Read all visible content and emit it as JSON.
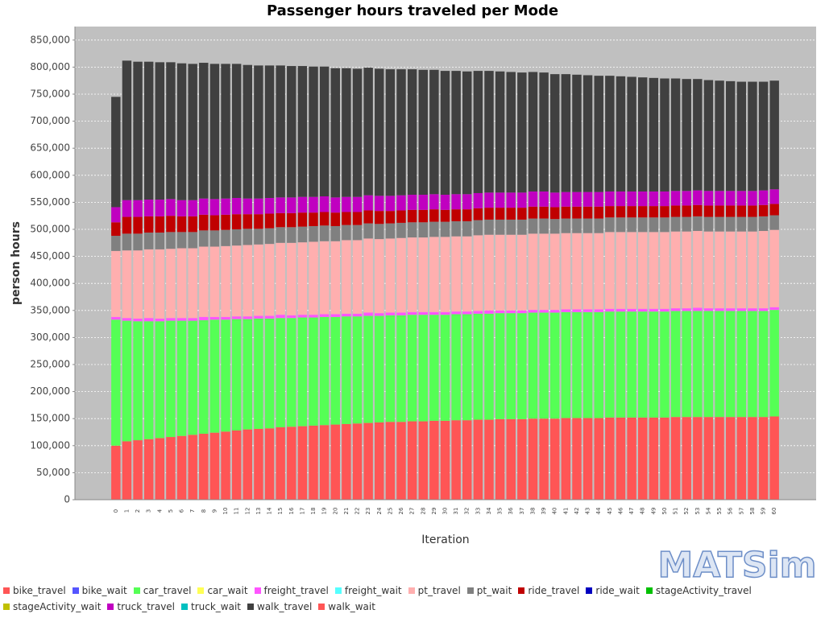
{
  "chart_data": {
    "type": "stacked_bar",
    "title": "Passenger hours traveled per Mode",
    "xlabel": "Iteration",
    "ylabel": "person hours",
    "logo": "MATSim",
    "categories": [
      0,
      1,
      2,
      3,
      4,
      5,
      6,
      7,
      8,
      9,
      10,
      11,
      12,
      13,
      14,
      15,
      16,
      17,
      18,
      19,
      20,
      21,
      22,
      23,
      24,
      25,
      26,
      27,
      28,
      29,
      30,
      31,
      32,
      33,
      34,
      35,
      36,
      37,
      38,
      39,
      40,
      41,
      42,
      43,
      44,
      45,
      46,
      47,
      48,
      49,
      50,
      51,
      52,
      53,
      54,
      55,
      56,
      57,
      58,
      59,
      60
    ],
    "ylim": [
      0,
      875000
    ],
    "yticks": [
      0,
      {
        "value": 50000,
        "label": "50,000"
      },
      {
        "value": 100000,
        "label": "100,000"
      },
      {
        "value": 150000,
        "label": "150,000"
      },
      {
        "value": 200000,
        "label": "200,000"
      },
      {
        "value": 250000,
        "label": "250,000"
      },
      {
        "value": 300000,
        "label": "300,000"
      },
      {
        "value": 350000,
        "label": "350,000"
      },
      {
        "value": 400000,
        "label": "400,000"
      },
      {
        "value": 450000,
        "label": "450,000"
      },
      {
        "value": 500000,
        "label": "500,000"
      },
      {
        "value": 550000,
        "label": "550,000"
      },
      {
        "value": 600000,
        "label": "600,000"
      },
      {
        "value": 650000,
        "label": "650,000"
      },
      {
        "value": 700000,
        "label": "700,000"
      },
      {
        "value": 750000,
        "label": "750,000"
      },
      {
        "value": 800000,
        "label": "800,000"
      },
      {
        "value": 850000,
        "label": "850,000"
      }
    ],
    "grid": true,
    "series": [
      {
        "name": "bike_travel",
        "color": "#ff5555",
        "values": [
          100000,
          108000,
          110000,
          112000,
          114000,
          116000,
          118000,
          120000,
          122000,
          124000,
          126000,
          128000,
          130000,
          131000,
          132000,
          134000,
          135000,
          136000,
          137000,
          138000,
          139000,
          140000,
          141000,
          142000,
          143000,
          144000,
          144000,
          145000,
          145000,
          146000,
          146000,
          147000,
          147000,
          148000,
          148000,
          149000,
          149000,
          149000,
          150000,
          150000,
          150000,
          151000,
          151000,
          151000,
          151000,
          152000,
          152000,
          152000,
          152000,
          152000,
          152000,
          153000,
          153000,
          153000,
          153000,
          153000,
          153000,
          153000,
          153000,
          153000,
          154000
        ]
      },
      {
        "name": "bike_wait",
        "color": "#5555ff",
        "values": [
          0,
          0,
          0,
          0,
          0,
          0,
          0,
          0,
          0,
          0,
          0,
          0,
          0,
          0,
          0,
          0,
          0,
          0,
          0,
          0,
          0,
          0,
          0,
          0,
          0,
          0,
          0,
          0,
          0,
          0,
          0,
          0,
          0,
          0,
          0,
          0,
          0,
          0,
          0,
          0,
          0,
          0,
          0,
          0,
          0,
          0,
          0,
          0,
          0,
          0,
          0,
          0,
          0,
          0,
          0,
          0,
          0,
          0,
          0,
          0,
          0
        ]
      },
      {
        "name": "car_travel",
        "color": "#55ff55",
        "values": [
          233000,
          223000,
          220000,
          218000,
          216000,
          215000,
          213000,
          211000,
          210000,
          209000,
          207000,
          206000,
          204000,
          204000,
          203000,
          202000,
          201000,
          201000,
          200000,
          200000,
          199000,
          199000,
          198000,
          198000,
          197000,
          197000,
          197000,
          197000,
          197000,
          196000,
          196000,
          196000,
          196000,
          196000,
          196000,
          196000,
          196000,
          196000,
          196000,
          196000,
          196000,
          196000,
          196000,
          196000,
          196000,
          196000,
          196000,
          196000,
          196000,
          196000,
          196000,
          196000,
          196000,
          196000,
          196000,
          196000,
          196000,
          196000,
          196000,
          196000,
          197000
        ]
      },
      {
        "name": "car_wait",
        "color": "#ffff55",
        "values": [
          0,
          0,
          0,
          0,
          0,
          0,
          0,
          0,
          0,
          0,
          0,
          0,
          0,
          0,
          0,
          0,
          0,
          0,
          0,
          0,
          0,
          0,
          0,
          0,
          0,
          0,
          0,
          0,
          0,
          0,
          0,
          0,
          0,
          0,
          0,
          0,
          0,
          0,
          0,
          0,
          0,
          0,
          0,
          0,
          0,
          0,
          0,
          0,
          0,
          0,
          0,
          0,
          0,
          0,
          0,
          0,
          0,
          0,
          0,
          0,
          0
        ]
      },
      {
        "name": "freight_travel",
        "color": "#ff55ff",
        "values": [
          5000,
          5000,
          5000,
          6000,
          5000,
          5000,
          5000,
          5000,
          6000,
          5000,
          5000,
          5000,
          5000,
          5000,
          5000,
          6000,
          5000,
          5000,
          5000,
          5000,
          5000,
          5000,
          5000,
          6000,
          5000,
          5000,
          5000,
          5000,
          5000,
          5000,
          5000,
          5000,
          5000,
          5000,
          6000,
          5000,
          5000,
          5000,
          5000,
          5000,
          5000,
          5000,
          5000,
          5000,
          5000,
          5000,
          5000,
          5000,
          5000,
          5000,
          5000,
          5000,
          5000,
          6000,
          5000,
          5000,
          5000,
          5000,
          5000,
          5000,
          5000
        ]
      },
      {
        "name": "freight_wait",
        "color": "#55ffff",
        "values": [
          0,
          0,
          0,
          0,
          0,
          0,
          0,
          0,
          0,
          0,
          0,
          0,
          0,
          0,
          0,
          0,
          0,
          0,
          0,
          0,
          0,
          0,
          0,
          0,
          0,
          0,
          0,
          0,
          0,
          0,
          0,
          0,
          0,
          0,
          0,
          0,
          0,
          0,
          0,
          0,
          0,
          0,
          0,
          0,
          0,
          0,
          0,
          0,
          0,
          0,
          0,
          0,
          0,
          0,
          0,
          0,
          0,
          0,
          0,
          0,
          0
        ]
      },
      {
        "name": "pt_travel",
        "color": "#ffafaf",
        "values": [
          122000,
          125000,
          126000,
          127000,
          128000,
          128000,
          129000,
          129000,
          130000,
          130000,
          131000,
          131000,
          132000,
          132000,
          133000,
          133000,
          134000,
          134000,
          135000,
          135000,
          135000,
          136000,
          136000,
          137000,
          137000,
          137000,
          138000,
          138000,
          138000,
          139000,
          139000,
          139000,
          139000,
          140000,
          140000,
          140000,
          140000,
          140000,
          141000,
          141000,
          141000,
          141000,
          141000,
          141000,
          141000,
          142000,
          142000,
          142000,
          142000,
          142000,
          142000,
          142000,
          142000,
          142000,
          142000,
          142000,
          142000,
          142000,
          142000,
          143000,
          143000
        ]
      },
      {
        "name": "pt_wait",
        "color": "#808080",
        "values": [
          28000,
          31000,
          31000,
          31000,
          31000,
          31000,
          30000,
          30000,
          30000,
          30000,
          30000,
          30000,
          30000,
          29000,
          29000,
          29000,
          29000,
          29000,
          29000,
          29000,
          28000,
          28000,
          28000,
          28000,
          28000,
          28000,
          28000,
          28000,
          28000,
          28000,
          28000,
          28000,
          28000,
          28000,
          28000,
          28000,
          28000,
          28000,
          28000,
          28000,
          27000,
          27000,
          27000,
          27000,
          27000,
          27000,
          27000,
          27000,
          27000,
          27000,
          27000,
          27000,
          27000,
          27000,
          27000,
          27000,
          27000,
          27000,
          27000,
          27000,
          27000
        ]
      },
      {
        "name": "ride_travel",
        "color": "#c00000",
        "values": [
          25000,
          31000,
          31000,
          30000,
          30000,
          30000,
          29000,
          29000,
          29000,
          28000,
          28000,
          28000,
          27000,
          27000,
          27000,
          26000,
          26000,
          26000,
          25000,
          25000,
          25000,
          24000,
          24000,
          24000,
          24000,
          23000,
          23000,
          23000,
          23000,
          23000,
          22000,
          22000,
          22000,
          22000,
          22000,
          22000,
          22000,
          22000,
          22000,
          22000,
          22000,
          22000,
          22000,
          22000,
          22000,
          21000,
          21000,
          21000,
          21000,
          21000,
          21000,
          21000,
          21000,
          21000,
          21000,
          21000,
          21000,
          21000,
          21000,
          21000,
          21000
        ]
      },
      {
        "name": "ride_wait",
        "color": "#0000c0",
        "values": [
          0,
          0,
          0,
          0,
          0,
          0,
          0,
          0,
          0,
          0,
          0,
          0,
          0,
          0,
          0,
          0,
          0,
          0,
          0,
          0,
          0,
          0,
          0,
          0,
          0,
          0,
          0,
          0,
          0,
          0,
          0,
          0,
          0,
          0,
          0,
          0,
          0,
          0,
          0,
          0,
          0,
          0,
          0,
          0,
          0,
          0,
          0,
          0,
          0,
          0,
          0,
          0,
          0,
          0,
          0,
          0,
          0,
          0,
          0,
          0,
          0
        ]
      },
      {
        "name": "stageActivity_travel",
        "color": "#00c000",
        "values": [
          0,
          0,
          0,
          0,
          0,
          0,
          0,
          0,
          0,
          0,
          0,
          0,
          0,
          0,
          0,
          0,
          0,
          0,
          0,
          0,
          0,
          0,
          0,
          0,
          0,
          0,
          0,
          0,
          0,
          0,
          0,
          0,
          0,
          0,
          0,
          0,
          0,
          0,
          0,
          0,
          0,
          0,
          0,
          0,
          0,
          0,
          0,
          0,
          0,
          0,
          0,
          0,
          0,
          0,
          0,
          0,
          0,
          0,
          0,
          0,
          0
        ]
      },
      {
        "name": "stageActivity_wait",
        "color": "#c0c000",
        "values": [
          0,
          0,
          0,
          0,
          0,
          0,
          0,
          0,
          0,
          0,
          0,
          0,
          0,
          0,
          0,
          0,
          0,
          0,
          0,
          0,
          0,
          0,
          0,
          0,
          0,
          0,
          0,
          0,
          0,
          0,
          0,
          0,
          0,
          0,
          0,
          0,
          0,
          0,
          0,
          0,
          0,
          0,
          0,
          0,
          0,
          0,
          0,
          0,
          0,
          0,
          0,
          0,
          0,
          0,
          0,
          0,
          0,
          0,
          0,
          0,
          0
        ]
      },
      {
        "name": "truck_travel",
        "color": "#c000c0",
        "values": [
          28000,
          31000,
          31000,
          31000,
          31000,
          31000,
          30000,
          30000,
          30000,
          30000,
          30000,
          30000,
          29000,
          29000,
          29000,
          29000,
          29000,
          29000,
          29000,
          29000,
          28000,
          28000,
          28000,
          28000,
          28000,
          28000,
          28000,
          28000,
          28000,
          28000,
          28000,
          28000,
          28000,
          28000,
          28000,
          28000,
          28000,
          28000,
          28000,
          28000,
          27000,
          27000,
          27000,
          27000,
          27000,
          27000,
          27000,
          27000,
          27000,
          27000,
          27000,
          27000,
          27000,
          27000,
          27000,
          27000,
          27000,
          27000,
          27000,
          27000,
          27000
        ]
      },
      {
        "name": "truck_wait",
        "color": "#00c0c0",
        "values": [
          0,
          0,
          0,
          0,
          0,
          0,
          0,
          0,
          0,
          0,
          0,
          0,
          0,
          0,
          0,
          0,
          0,
          0,
          0,
          0,
          0,
          0,
          0,
          0,
          0,
          0,
          0,
          0,
          0,
          0,
          0,
          0,
          0,
          0,
          0,
          0,
          0,
          0,
          0,
          0,
          0,
          0,
          0,
          0,
          0,
          0,
          0,
          0,
          0,
          0,
          0,
          0,
          0,
          0,
          0,
          0,
          0,
          0,
          0,
          0,
          0
        ]
      },
      {
        "name": "walk_travel",
        "color": "#404040",
        "values": [
          204000,
          258000,
          256000,
          255000,
          254000,
          253000,
          253000,
          252000,
          251000,
          250000,
          249000,
          248000,
          247000,
          246000,
          245000,
          244000,
          243000,
          242000,
          241000,
          240000,
          239000,
          238000,
          237000,
          236000,
          235000,
          234000,
          233000,
          232000,
          231000,
          230000,
          229000,
          228000,
          227000,
          226000,
          225000,
          224000,
          223000,
          222000,
          221000,
          220000,
          219000,
          218000,
          217000,
          216000,
          215000,
          214000,
          213000,
          212000,
          211000,
          210000,
          209000,
          208000,
          207000,
          206000,
          205000,
          204000,
          203000,
          202000,
          202000,
          201000,
          201000
        ]
      },
      {
        "name": "walk_wait",
        "color": "#ff5555",
        "values": [
          0,
          0,
          0,
          0,
          0,
          0,
          0,
          0,
          0,
          0,
          0,
          0,
          0,
          0,
          0,
          0,
          0,
          0,
          0,
          0,
          0,
          0,
          0,
          0,
          0,
          0,
          0,
          0,
          0,
          0,
          0,
          0,
          0,
          0,
          0,
          0,
          0,
          0,
          0,
          0,
          0,
          0,
          0,
          0,
          0,
          0,
          0,
          0,
          0,
          0,
          0,
          0,
          0,
          0,
          0,
          0,
          0,
          0,
          0,
          0,
          0
        ]
      }
    ]
  }
}
